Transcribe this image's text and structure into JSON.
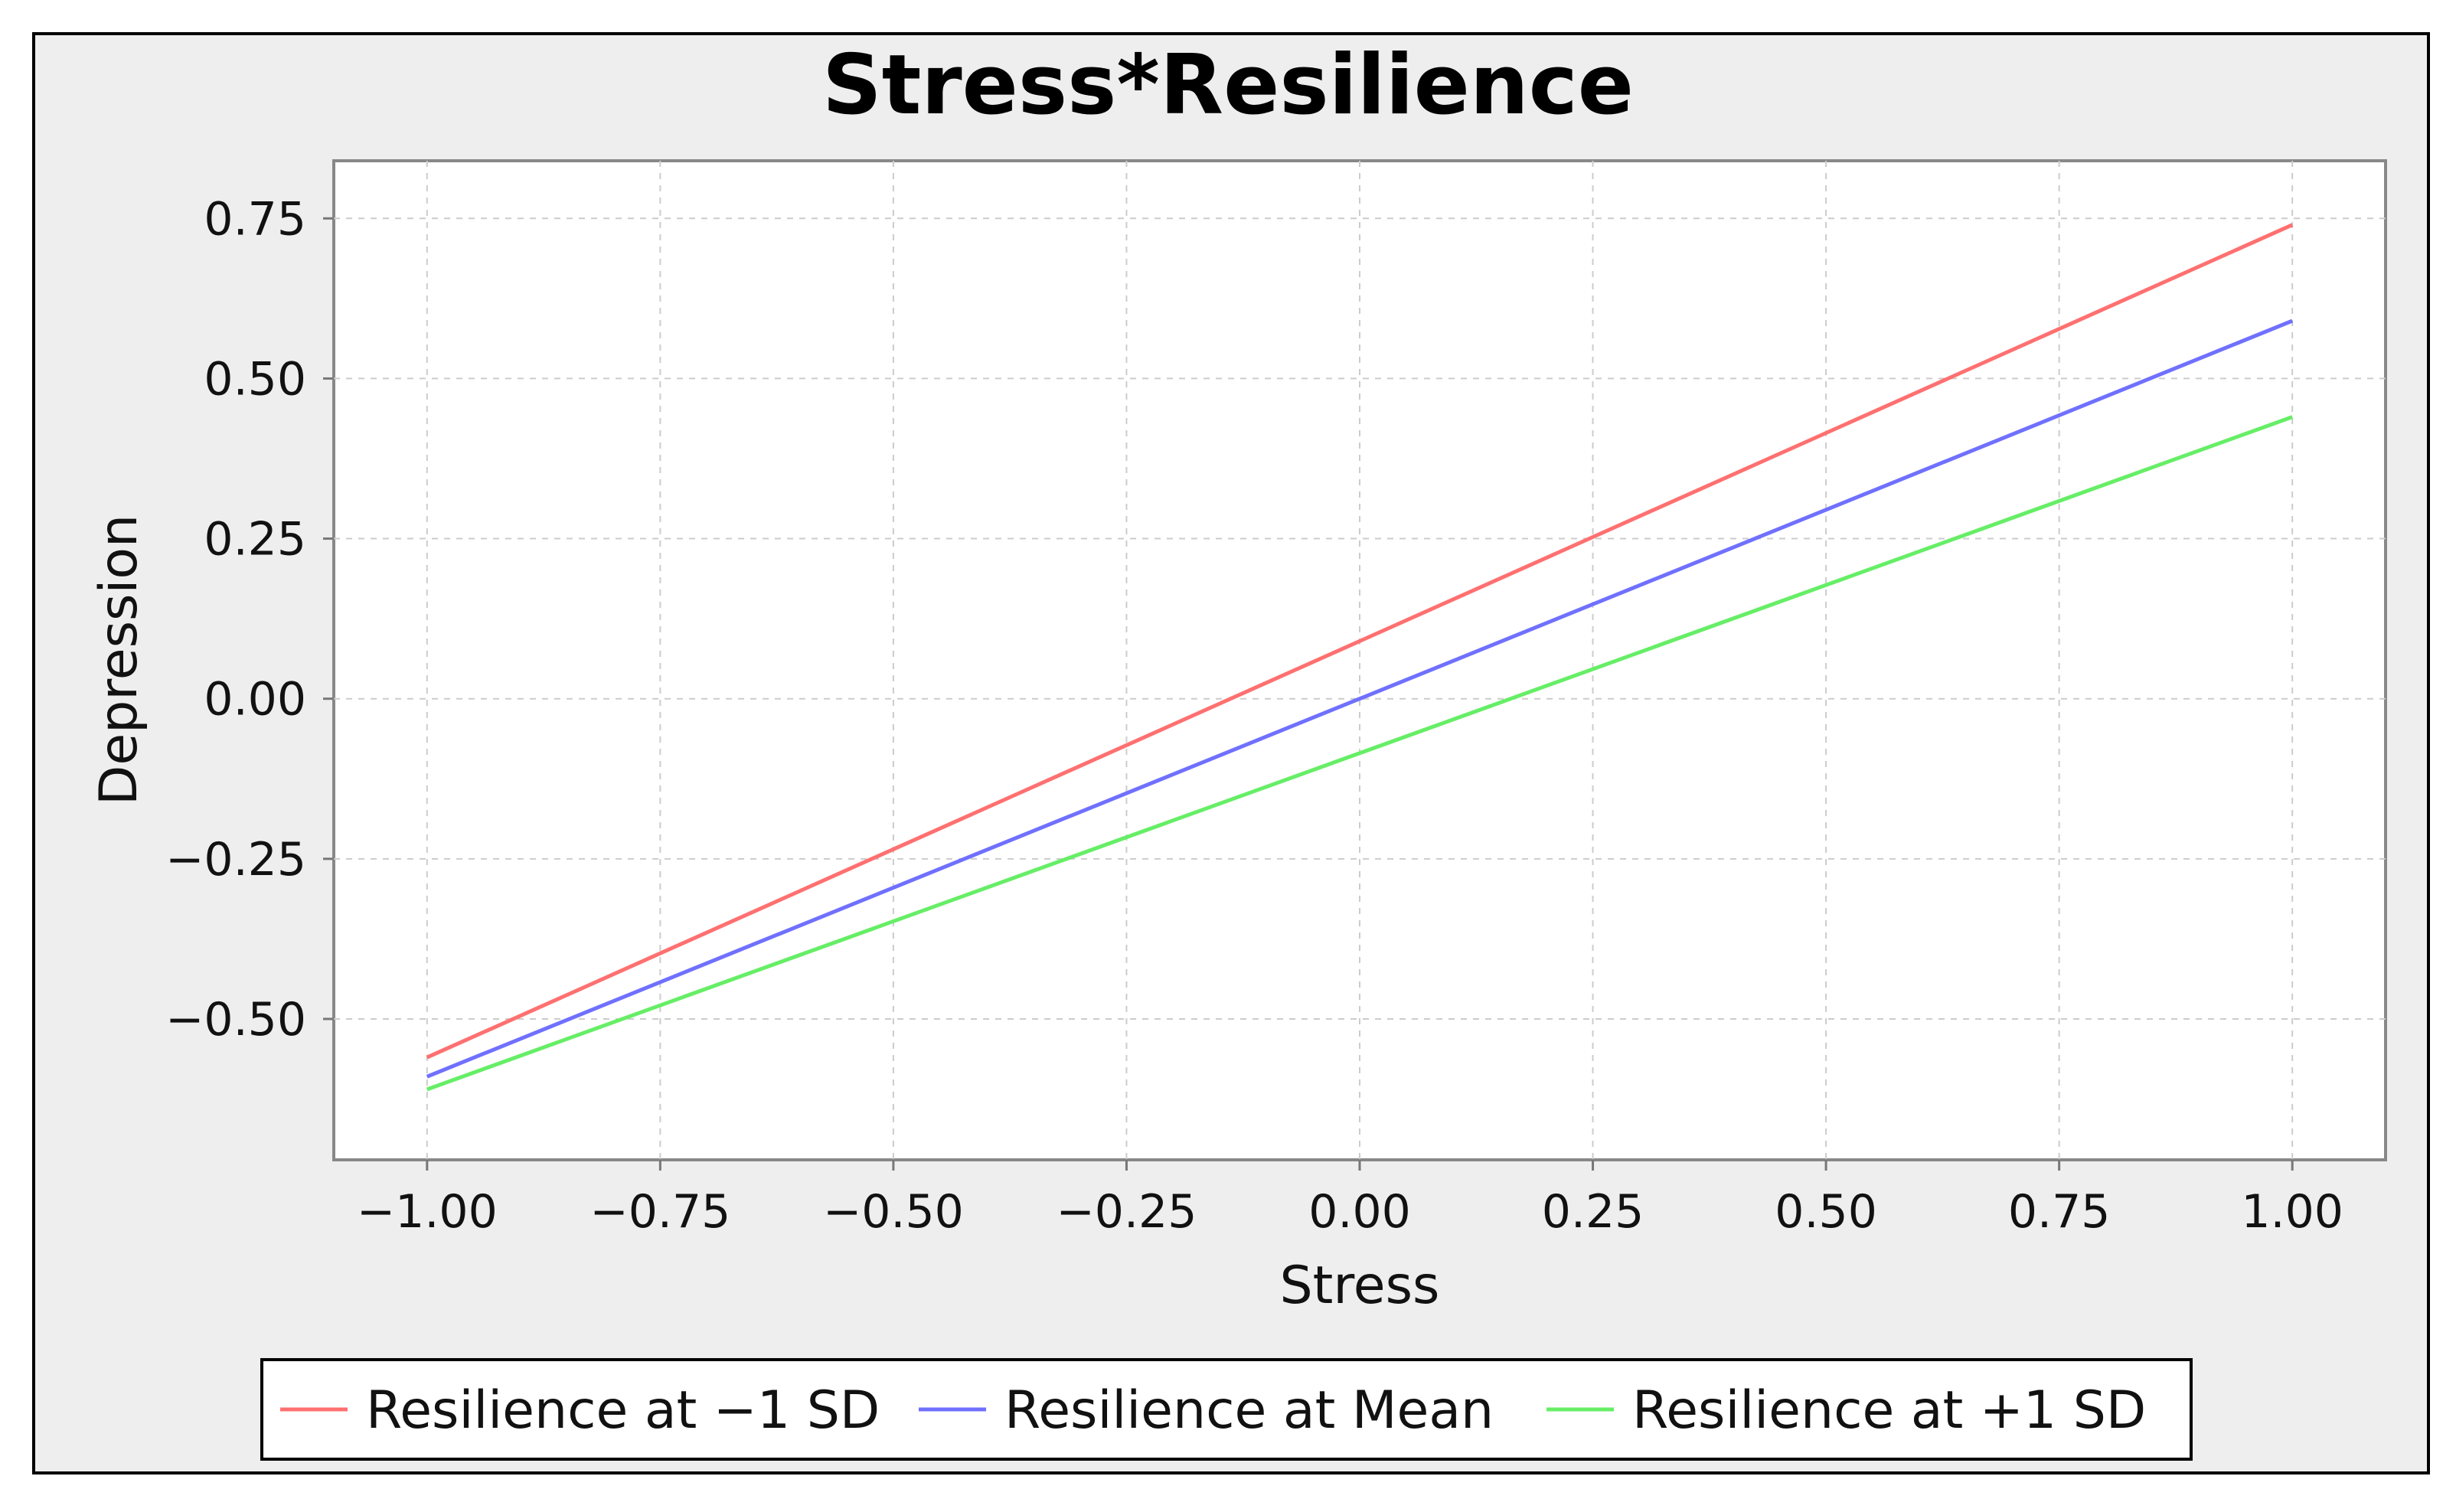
{
  "chart_data": {
    "type": "line",
    "title": "Stress*Resilience",
    "xlabel": "Stress",
    "ylabel": "Depression",
    "xlim": [
      -1.1,
      1.1
    ],
    "ylim": [
      -0.72,
      0.84
    ],
    "xticks": [
      -1.0,
      -0.75,
      -0.5,
      -0.25,
      0.0,
      0.25,
      0.5,
      0.75,
      1.0
    ],
    "xtick_labels": [
      "−1.00",
      "−0.75",
      "−0.50",
      "−0.25",
      "0.00",
      "0.25",
      "0.50",
      "0.75",
      "1.00"
    ],
    "yticks": [
      -0.5,
      -0.25,
      0.0,
      0.25,
      0.5,
      0.75
    ],
    "ytick_labels": [
      "−0.50",
      "−0.25",
      "0.00",
      "0.25",
      "0.50",
      "0.75"
    ],
    "grid": true,
    "legend_position": "bottom",
    "series": [
      {
        "name": "Resilience at −1 SD",
        "color": "#ff7070",
        "x": [
          -1.0,
          1.0
        ],
        "y": [
          -0.56,
          0.74
        ]
      },
      {
        "name": "Resilience at Mean",
        "color": "#7070ff",
        "x": [
          -1.0,
          1.0
        ],
        "y": [
          -0.59,
          0.59
        ]
      },
      {
        "name": "Resilience at +1 SD",
        "color": "#66ee66",
        "x": [
          -1.0,
          1.0
        ],
        "y": [
          -0.61,
          0.44
        ]
      }
    ]
  }
}
